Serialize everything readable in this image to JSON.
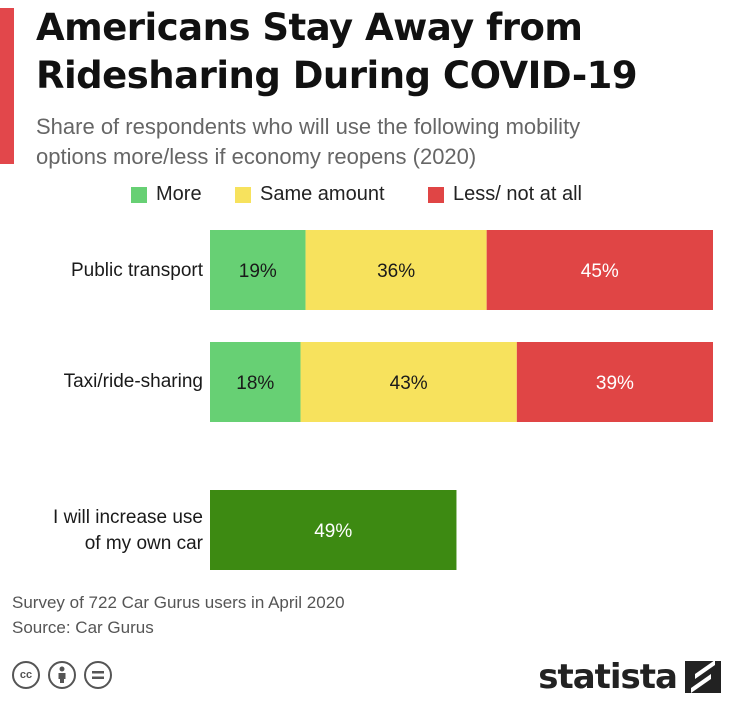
{
  "header": {
    "title_line1": "Americans Stay Away from",
    "title_line2": "Ridesharing During COVID-19",
    "subtitle_line1": "Share of respondents who will use the following mobility",
    "subtitle_line2": "options more/less if economy reopens (2020)"
  },
  "colors": {
    "accent": "#e2474b",
    "more": "#67d074",
    "same": "#f7e25d",
    "less": "#e04545",
    "own_car": "#3d8a12"
  },
  "chart_data": {
    "type": "bar",
    "orientation": "horizontal",
    "stacked": true,
    "xlim": [
      0,
      100
    ],
    "categories": [
      "Public transport",
      "Taxi/ride-sharing",
      "I will increase use of my own car"
    ],
    "category_lines": [
      [
        "Public transport"
      ],
      [
        "Taxi/ride-sharing"
      ],
      [
        "I will increase use",
        "of my own car"
      ]
    ],
    "series": [
      {
        "name": "More",
        "values": [
          19,
          18,
          null
        ]
      },
      {
        "name": "Same amount",
        "values": [
          36,
          43,
          null
        ]
      },
      {
        "name": "Less/ not at all",
        "values": [
          45,
          39,
          null
        ]
      },
      {
        "name": "",
        "values": [
          null,
          null,
          49
        ]
      }
    ],
    "legend_position": "top",
    "grid": false
  },
  "footer": {
    "note": "Survey of 722 Car Gurus users in April 2020",
    "source": "Source: Car Gurus",
    "brand": "statista"
  },
  "icons": [
    "cc-icon",
    "attribution-icon",
    "no-derivatives-icon"
  ]
}
